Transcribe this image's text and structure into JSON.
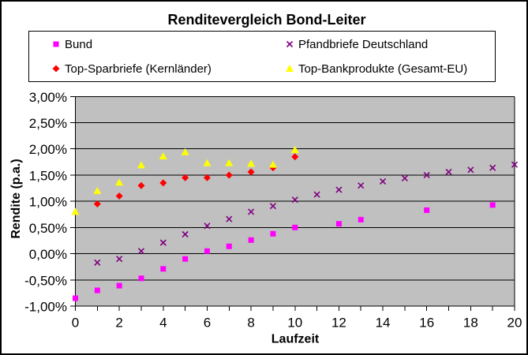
{
  "chart_data": {
    "type": "scatter",
    "title": "Renditevergleich Bond-Leiter",
    "xlabel": "Laufzeit",
    "ylabel": "Rendite (p.a.)",
    "xlim": [
      0,
      20
    ],
    "ylim": [
      -1.0,
      3.0
    ],
    "grid": "horizontal-on",
    "legend_position": "top",
    "plot_bg_color": "#C0C0C0",
    "gridline_color": "#000000",
    "x_minor_tick_step": 1,
    "x_ticks": [
      {
        "v": 0,
        "label": "0"
      },
      {
        "v": 2,
        "label": "2"
      },
      {
        "v": 4,
        "label": "4"
      },
      {
        "v": 6,
        "label": "6"
      },
      {
        "v": 8,
        "label": "8"
      },
      {
        "v": 10,
        "label": "10"
      },
      {
        "v": 12,
        "label": "12"
      },
      {
        "v": 14,
        "label": "14"
      },
      {
        "v": 16,
        "label": "16"
      },
      {
        "v": 18,
        "label": "18"
      },
      {
        "v": 20,
        "label": "20"
      }
    ],
    "y_ticks": [
      {
        "v": 3.0,
        "label": "3,00%"
      },
      {
        "v": 2.5,
        "label": "2,50%"
      },
      {
        "v": 2.0,
        "label": "2,00%"
      },
      {
        "v": 1.5,
        "label": "1,50%"
      },
      {
        "v": 1.0,
        "label": "1,00%"
      },
      {
        "v": 0.5,
        "label": "0,50%"
      },
      {
        "v": 0.0,
        "label": "0,00%"
      },
      {
        "v": -0.5,
        "label": "-0,50%"
      },
      {
        "v": -1.0,
        "label": "-1,00%"
      }
    ],
    "series": [
      {
        "name": "Bund",
        "marker": "square",
        "color": "#FF00FF",
        "points": [
          [
            0,
            -0.85
          ],
          [
            1,
            -0.7
          ],
          [
            2,
            -0.61
          ],
          [
            3,
            -0.47
          ],
          [
            4,
            -0.29
          ],
          [
            5,
            -0.1
          ],
          [
            6,
            0.05
          ],
          [
            7,
            0.14
          ],
          [
            8,
            0.26
          ],
          [
            9,
            0.38
          ],
          [
            10,
            0.5
          ],
          [
            12,
            0.57
          ],
          [
            13,
            0.65
          ],
          [
            16,
            0.83
          ],
          [
            19,
            0.93
          ]
        ]
      },
      {
        "name": "Pfandbriefe Deutschland",
        "marker": "x",
        "color": "#800080",
        "points": [
          [
            1,
            -0.17
          ],
          [
            2,
            -0.1
          ],
          [
            3,
            0.05
          ],
          [
            4,
            0.21
          ],
          [
            5,
            0.37
          ],
          [
            6,
            0.53
          ],
          [
            7,
            0.66
          ],
          [
            8,
            0.8
          ],
          [
            9,
            0.91
          ],
          [
            10,
            1.03
          ],
          [
            11,
            1.13
          ],
          [
            12,
            1.22
          ],
          [
            13,
            1.3
          ],
          [
            14,
            1.38
          ],
          [
            15,
            1.44
          ],
          [
            16,
            1.5
          ],
          [
            17,
            1.56
          ],
          [
            18,
            1.6
          ],
          [
            19,
            1.64
          ],
          [
            20,
            1.7
          ]
        ]
      },
      {
        "name": "Top-Sparbriefe (Kernländer)",
        "marker": "diamond",
        "color": "#FF0000",
        "points": [
          [
            1,
            0.95
          ],
          [
            2,
            1.1
          ],
          [
            3,
            1.3
          ],
          [
            4,
            1.35
          ],
          [
            5,
            1.45
          ],
          [
            6,
            1.45
          ],
          [
            7,
            1.5
          ],
          [
            8,
            1.56
          ],
          [
            9,
            1.64
          ],
          [
            10,
            1.85
          ]
        ]
      },
      {
        "name": "Top-Bankprodukte (Gesamt-EU)",
        "marker": "triangle",
        "color": "#FFFF00",
        "points": [
          [
            0,
            0.8
          ],
          [
            1,
            1.2
          ],
          [
            2,
            1.36
          ],
          [
            3,
            1.69
          ],
          [
            4,
            1.86
          ],
          [
            5,
            1.94
          ],
          [
            6,
            1.73
          ],
          [
            7,
            1.73
          ],
          [
            8,
            1.72
          ],
          [
            9,
            1.7
          ],
          [
            10,
            1.98
          ]
        ]
      }
    ]
  }
}
